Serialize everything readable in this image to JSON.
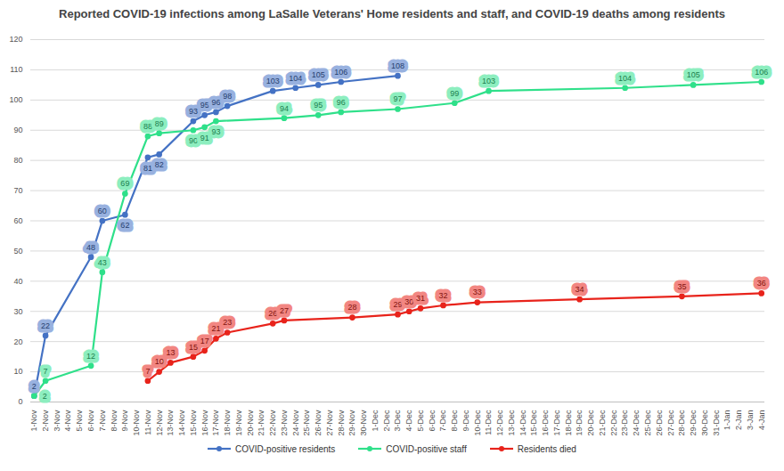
{
  "chart_data": {
    "type": "line",
    "title": "Reported COVID-19 infections among LaSalle Veterans' Home residents and staff, and COVID-19 deaths among residents",
    "x": [
      "1-Nov",
      "2-Nov",
      "3-Nov",
      "4-Nov",
      "5-Nov",
      "6-Nov",
      "7-Nov",
      "8-Nov",
      "9-Nov",
      "10-Nov",
      "11-Nov",
      "12-Nov",
      "13-Nov",
      "14-Nov",
      "15-Nov",
      "16-Nov",
      "17-Nov",
      "18-Nov",
      "19-Nov",
      "20-Nov",
      "21-Nov",
      "22-Nov",
      "23-Nov",
      "24-Nov",
      "25-Nov",
      "26-Nov",
      "27-Nov",
      "28-Nov",
      "29-Nov",
      "30-Nov",
      "1-Dec",
      "2-Dec",
      "3-Dec",
      "4-Dec",
      "5-Dec",
      "6-Dec",
      "7-Dec",
      "8-Dec",
      "9-Dec",
      "10-Dec",
      "11-Dec",
      "12-Dec",
      "13-Dec",
      "14-Dec",
      "15-Dec",
      "16-Dec",
      "17-Dec",
      "18-Dec",
      "19-Dec",
      "20-Dec",
      "21-Dec",
      "22-Dec",
      "23-Dec",
      "24-Dec",
      "25-Dec",
      "26-Dec",
      "27-Dec",
      "28-Dec",
      "29-Dec",
      "30-Dec",
      "31-Dec",
      "1-Jan",
      "2-Jan",
      "3-Jan",
      "4-Jan"
    ],
    "series": [
      {
        "name": "COVID-positive residents",
        "color": "#4472c4",
        "x": [
          "1-Nov",
          "2-Nov",
          "6-Nov",
          "7-Nov",
          "9-Nov",
          "11-Nov",
          "12-Nov",
          "15-Nov",
          "16-Nov",
          "17-Nov",
          "18-Nov",
          "22-Nov",
          "24-Nov",
          "26-Nov",
          "28-Nov",
          "3-Dec"
        ],
        "values": [
          2,
          22,
          48,
          60,
          62,
          81,
          82,
          93,
          95,
          96,
          98,
          103,
          104,
          105,
          106,
          108
        ]
      },
      {
        "name": "COVID-positive staff",
        "color": "#2fe08a",
        "x": [
          "1-Nov",
          "2-Nov",
          "6-Nov",
          "7-Nov",
          "9-Nov",
          "11-Nov",
          "12-Nov",
          "15-Nov",
          "16-Nov",
          "17-Nov",
          "23-Nov",
          "26-Nov",
          "28-Nov",
          "3-Dec",
          "8-Dec",
          "11-Dec",
          "23-Dec",
          "29-Dec",
          "4-Jan"
        ],
        "values": [
          2,
          7,
          12,
          43,
          69,
          88,
          89,
          90,
          91,
          93,
          94,
          95,
          96,
          97,
          99,
          103,
          104,
          105,
          106
        ]
      },
      {
        "name": "Residents died",
        "color": "#e8231b",
        "x": [
          "11-Nov",
          "12-Nov",
          "13-Nov",
          "15-Nov",
          "16-Nov",
          "17-Nov",
          "18-Nov",
          "22-Nov",
          "23-Nov",
          "29-Nov",
          "3-Dec",
          "4-Dec",
          "5-Dec",
          "7-Dec",
          "10-Dec",
          "19-Dec",
          "28-Dec",
          "4-Jan"
        ],
        "values": [
          7,
          10,
          13,
          15,
          17,
          21,
          23,
          26,
          27,
          28,
          29,
          30,
          31,
          32,
          33,
          34,
          35,
          36
        ]
      }
    ],
    "ylim": [
      0,
      120
    ],
    "yticks": [
      0,
      10,
      20,
      30,
      40,
      50,
      60,
      70,
      80,
      90,
      100,
      110,
      120
    ],
    "grid": true,
    "legend": "bottom",
    "data_labels": true,
    "marker": "circle",
    "line_style": "solid"
  }
}
